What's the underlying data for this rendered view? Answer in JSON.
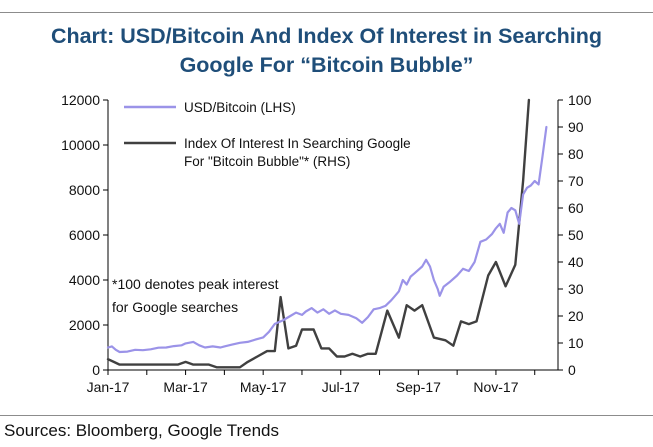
{
  "title_line1": "Chart: USD/Bitcoin And Index Of Interest in Searching",
  "title_line2": "Google For “Bitcoin Bubble”",
  "source": "Sources: Bloomberg, Google Trends",
  "chart_data": {
    "type": "line",
    "title": "Chart: USD/Bitcoin And Index Of Interest in Searching Google For “Bitcoin Bubble”",
    "xlabel": "",
    "ylabel_left": "",
    "ylabel_right": "",
    "x_tick_labels": [
      "Jan-17",
      "Mar-17",
      "May-17",
      "Jul-17",
      "Sep-17",
      "Nov-17"
    ],
    "y_left_ticks": [
      "0",
      "2000",
      "4000",
      "6000",
      "8000",
      "10000",
      "12000"
    ],
    "y_right_ticks": [
      "0",
      "10",
      "20",
      "30",
      "40",
      "50",
      "60",
      "70",
      "80",
      "90",
      "100"
    ],
    "ylim_left": [
      0,
      12000
    ],
    "ylim_right": [
      0,
      100
    ],
    "x_unit": "months since Jan-17",
    "xlim": [
      0,
      11.6
    ],
    "legend": [
      {
        "label": "USD/Bitcoin (LHS)",
        "color": "#9b93e8"
      },
      {
        "label_line1": "Index Of Interest In Searching Google",
        "label_line2": "For \"Bitcoin Bubble\"* (RHS)",
        "color": "#404040"
      }
    ],
    "annotation_line1": "*100 denotes peak interest",
    "annotation_line2": "for Google searches",
    "series": [
      {
        "name": "USD/Bitcoin (LHS)",
        "axis": "left",
        "color": "#9b93e8",
        "points": [
          [
            0.0,
            1000
          ],
          [
            0.1,
            1050
          ],
          [
            0.2,
            900
          ],
          [
            0.3,
            800
          ],
          [
            0.5,
            820
          ],
          [
            0.7,
            900
          ],
          [
            0.9,
            880
          ],
          [
            1.1,
            920
          ],
          [
            1.3,
            990
          ],
          [
            1.5,
            1000
          ],
          [
            1.7,
            1060
          ],
          [
            1.9,
            1100
          ],
          [
            2.0,
            1180
          ],
          [
            2.2,
            1250
          ],
          [
            2.35,
            1100
          ],
          [
            2.5,
            1000
          ],
          [
            2.7,
            1050
          ],
          [
            2.9,
            1000
          ],
          [
            3.0,
            1050
          ],
          [
            3.2,
            1130
          ],
          [
            3.4,
            1210
          ],
          [
            3.6,
            1250
          ],
          [
            3.8,
            1350
          ],
          [
            4.0,
            1450
          ],
          [
            4.15,
            1700
          ],
          [
            4.3,
            2050
          ],
          [
            4.5,
            2200
          ],
          [
            4.7,
            2400
          ],
          [
            4.85,
            2550
          ],
          [
            5.0,
            2450
          ],
          [
            5.1,
            2600
          ],
          [
            5.25,
            2750
          ],
          [
            5.4,
            2550
          ],
          [
            5.55,
            2700
          ],
          [
            5.7,
            2500
          ],
          [
            5.85,
            2650
          ],
          [
            6.0,
            2500
          ],
          [
            6.2,
            2450
          ],
          [
            6.4,
            2300
          ],
          [
            6.55,
            2100
          ],
          [
            6.7,
            2350
          ],
          [
            6.85,
            2700
          ],
          [
            7.0,
            2750
          ],
          [
            7.15,
            2850
          ],
          [
            7.3,
            3100
          ],
          [
            7.4,
            3300
          ],
          [
            7.5,
            3500
          ],
          [
            7.6,
            4000
          ],
          [
            7.7,
            3800
          ],
          [
            7.8,
            4150
          ],
          [
            7.9,
            4300
          ],
          [
            8.0,
            4450
          ],
          [
            8.1,
            4600
          ],
          [
            8.2,
            4900
          ],
          [
            8.3,
            4600
          ],
          [
            8.4,
            4000
          ],
          [
            8.5,
            3600
          ],
          [
            8.55,
            3300
          ],
          [
            8.65,
            3700
          ],
          [
            8.8,
            3900
          ],
          [
            9.0,
            4200
          ],
          [
            9.15,
            4500
          ],
          [
            9.3,
            4400
          ],
          [
            9.45,
            4800
          ],
          [
            9.6,
            5700
          ],
          [
            9.75,
            5800
          ],
          [
            9.9,
            6050
          ],
          [
            10.0,
            6300
          ],
          [
            10.1,
            6500
          ],
          [
            10.2,
            6100
          ],
          [
            10.3,
            7000
          ],
          [
            10.4,
            7200
          ],
          [
            10.5,
            7100
          ],
          [
            10.6,
            6500
          ],
          [
            10.7,
            7800
          ],
          [
            10.8,
            8100
          ],
          [
            10.9,
            8200
          ],
          [
            11.0,
            8400
          ],
          [
            11.1,
            8250
          ],
          [
            11.2,
            9500
          ],
          [
            11.3,
            10800
          ]
        ]
      },
      {
        "name": "Index Of Interest In Searching Google For \"Bitcoin Bubble\"* (RHS)",
        "axis": "right",
        "color": "#404040",
        "points": [
          [
            0.0,
            4
          ],
          [
            0.15,
            3
          ],
          [
            0.3,
            2
          ],
          [
            0.5,
            2
          ],
          [
            1.0,
            2
          ],
          [
            1.5,
            2
          ],
          [
            1.8,
            2
          ],
          [
            2.0,
            3
          ],
          [
            2.2,
            2
          ],
          [
            2.4,
            2
          ],
          [
            2.6,
            2
          ],
          [
            2.8,
            1
          ],
          [
            3.0,
            1
          ],
          [
            3.2,
            1
          ],
          [
            3.4,
            1
          ],
          [
            3.6,
            3
          ],
          [
            3.85,
            5
          ],
          [
            4.1,
            7
          ],
          [
            4.3,
            7
          ],
          [
            4.45,
            27
          ],
          [
            4.65,
            8
          ],
          [
            4.85,
            9
          ],
          [
            5.0,
            15
          ],
          [
            5.3,
            15
          ],
          [
            5.5,
            8
          ],
          [
            5.7,
            8
          ],
          [
            5.9,
            5
          ],
          [
            6.1,
            5
          ],
          [
            6.3,
            6
          ],
          [
            6.5,
            5
          ],
          [
            6.7,
            6
          ],
          [
            6.9,
            6
          ],
          [
            7.2,
            22
          ],
          [
            7.5,
            12
          ],
          [
            7.7,
            24
          ],
          [
            7.9,
            22
          ],
          [
            8.1,
            24
          ],
          [
            8.4,
            12
          ],
          [
            8.7,
            11
          ],
          [
            8.9,
            9
          ],
          [
            9.1,
            18
          ],
          [
            9.3,
            17
          ],
          [
            9.5,
            18
          ],
          [
            9.8,
            35
          ],
          [
            10.0,
            40
          ],
          [
            10.25,
            31
          ],
          [
            10.5,
            39
          ],
          [
            10.7,
            70
          ],
          [
            10.85,
            100
          ]
        ]
      }
    ]
  }
}
